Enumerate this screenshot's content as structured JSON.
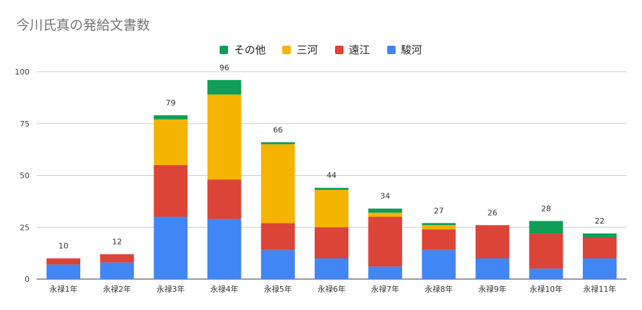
{
  "chart_data": {
    "type": "bar",
    "stacked": true,
    "title": "今川氏真の発給文書数",
    "categories": [
      "永禄1年",
      "永禄2年",
      "永禄3年",
      "永禄4年",
      "永禄5年",
      "永禄6年",
      "永禄7年",
      "永禄8年",
      "永禄9年",
      "永禄10年",
      "永禄11年"
    ],
    "series": [
      {
        "name": "駿河",
        "color": "#4285f4",
        "values": [
          7,
          8,
          30,
          29,
          14,
          10,
          6,
          14,
          10,
          5,
          10
        ]
      },
      {
        "name": "遠江",
        "color": "#db4437",
        "values": [
          3,
          4,
          25,
          19,
          13,
          15,
          24,
          10,
          16,
          17,
          10
        ]
      },
      {
        "name": "三河",
        "color": "#f4b400",
        "values": [
          0,
          0,
          22,
          41,
          38,
          18,
          2,
          2,
          0,
          0,
          0
        ]
      },
      {
        "name": "その他",
        "color": "#0f9d58",
        "values": [
          0,
          0,
          2,
          7,
          1,
          1,
          2,
          1,
          0,
          6,
          2
        ]
      }
    ],
    "totals": [
      10,
      12,
      79,
      96,
      66,
      44,
      34,
      27,
      26,
      28,
      22
    ],
    "legend_order": [
      "その他",
      "三河",
      "遠江",
      "駿河"
    ],
    "legend_position": "top",
    "ylim": [
      0,
      100
    ],
    "yticks": [
      0,
      25,
      50,
      75,
      100
    ],
    "grid": true
  }
}
